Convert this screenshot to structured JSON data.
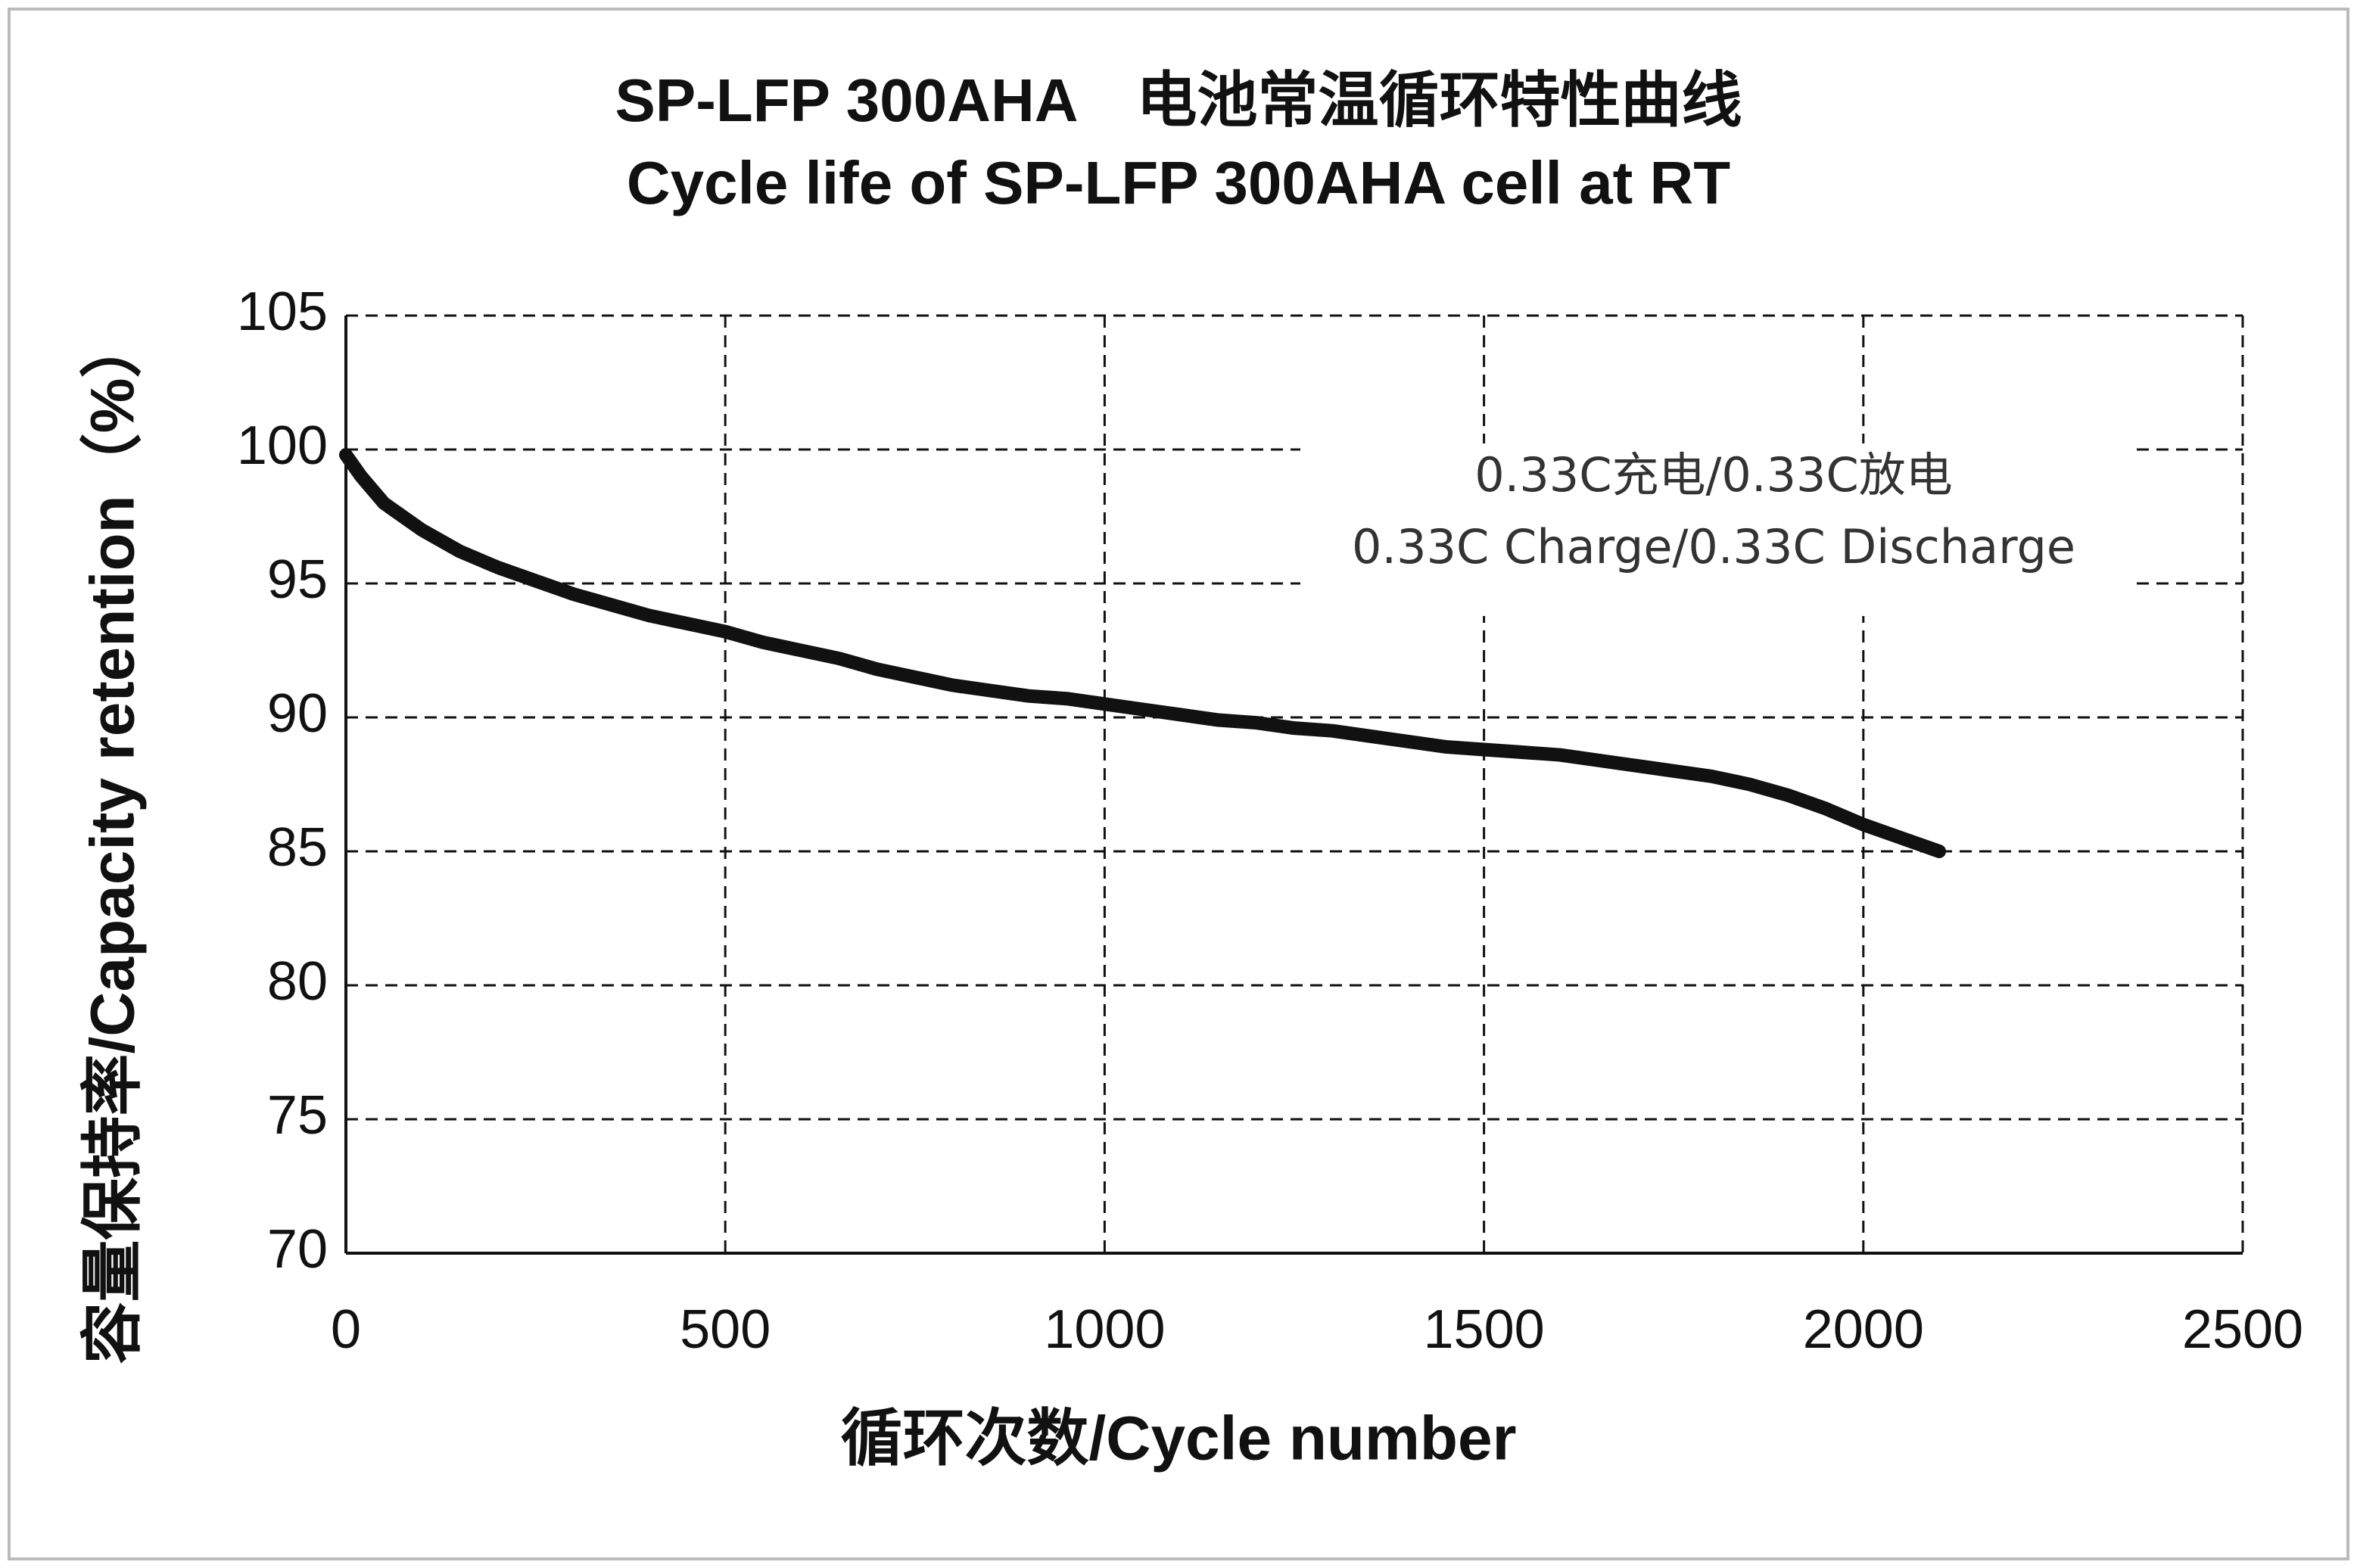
{
  "chart_data": {
    "type": "line",
    "title": "SP-LFP 300AHA　电池常温循环特性曲线",
    "subtitle": "Cycle life of SP-LFP 300AHA cell at RT",
    "x_label": "循环次数/Cycle number",
    "y_label": "容量保持率/Capacity retention（%）",
    "annotations": [
      "0.33C充电/0.33C放电",
      "0.33C Charge/0.33C Discharge"
    ],
    "x": [
      0,
      20,
      50,
      100,
      150,
      200,
      250,
      300,
      350,
      400,
      450,
      500,
      550,
      600,
      650,
      700,
      750,
      800,
      850,
      900,
      950,
      1000,
      1050,
      1100,
      1150,
      1200,
      1250,
      1300,
      1350,
      1400,
      1450,
      1500,
      1550,
      1600,
      1650,
      1700,
      1750,
      1800,
      1850,
      1900,
      1950,
      2000,
      2050,
      2100
    ],
    "series": [
      {
        "color": "#111111",
        "values": [
          99.8,
          99,
          98,
          97,
          96.2,
          95.6,
          95.1,
          94.6,
          94.2,
          93.8,
          93.5,
          93.2,
          92.8,
          92.5,
          92.2,
          91.8,
          91.5,
          91.2,
          91.0,
          90.8,
          90.7,
          90.5,
          90.3,
          90.1,
          89.9,
          89.8,
          89.6,
          89.5,
          89.3,
          89.1,
          88.9,
          88.8,
          88.7,
          88.6,
          88.4,
          88.2,
          88.0,
          87.8,
          87.5,
          87.1,
          86.6,
          86.0,
          85.5,
          85.0
        ]
      }
    ],
    "xlim": [
      0,
      2500
    ],
    "xticks": [
      0,
      500,
      1000,
      1500,
      2000,
      2500
    ],
    "ylim": [
      70,
      105
    ],
    "yticks": [
      70,
      75,
      80,
      85,
      90,
      95,
      100,
      105
    ],
    "grid": true
  }
}
